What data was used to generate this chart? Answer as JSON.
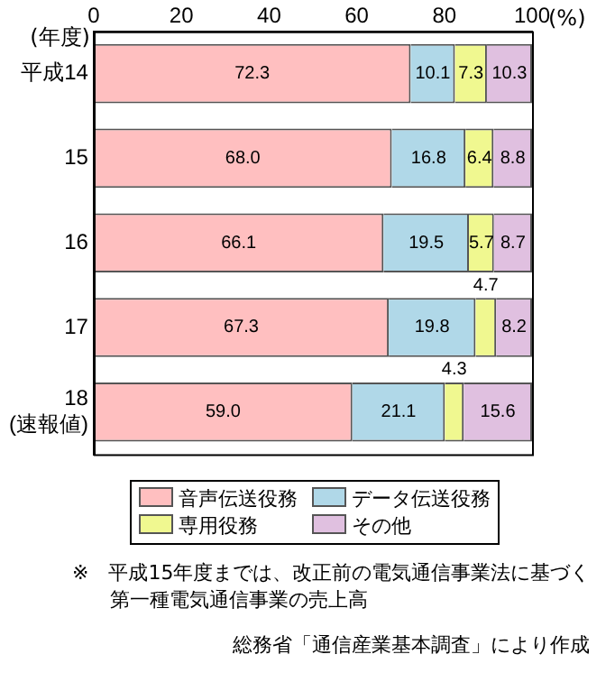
{
  "chart_data": {
    "type": "bar",
    "orientation": "horizontal",
    "stacked": true,
    "xlabel": "(%)",
    "ylabel": "(年度)",
    "categories": [
      "平成14",
      "15",
      "16",
      "17",
      "18\n(速報値)"
    ],
    "series": [
      {
        "name": "音声伝送役務",
        "color": "#ffbfc0",
        "values": [
          72.3,
          68.0,
          66.1,
          67.3,
          59.0
        ],
        "value_labels": [
          "72.3",
          "68.0",
          "66.1",
          "67.3",
          "59.0"
        ]
      },
      {
        "name": "データ伝送役務",
        "color": "#b0d8e8",
        "values": [
          10.1,
          16.8,
          19.5,
          19.8,
          21.1
        ],
        "value_labels": [
          "10.1",
          "16.8",
          "19.5",
          "19.8",
          "21.1"
        ]
      },
      {
        "name": "専用役務",
        "color": "#f0f890",
        "values": [
          7.3,
          6.4,
          5.7,
          4.7,
          4.3
        ],
        "value_labels": [
          "7.3",
          "6.4",
          "5.7",
          "4.7",
          "4.3"
        ]
      },
      {
        "name": "その他",
        "color": "#e0c0e0",
        "values": [
          10.3,
          8.8,
          8.7,
          8.2,
          15.6
        ],
        "value_labels": [
          "10.3",
          "8.8",
          "8.7",
          "8.2",
          "15.6"
        ]
      }
    ],
    "xlim": [
      0,
      100
    ],
    "xticks": [
      0,
      20,
      40,
      60,
      80,
      100
    ],
    "grid": false,
    "legend": "bottom",
    "annotations": [
      "※　平成15年度までは、改正前の電気通信事業法に基づく第一種電気通信事業の売上高",
      "総務省「通信産業基本調査」により作成"
    ]
  }
}
